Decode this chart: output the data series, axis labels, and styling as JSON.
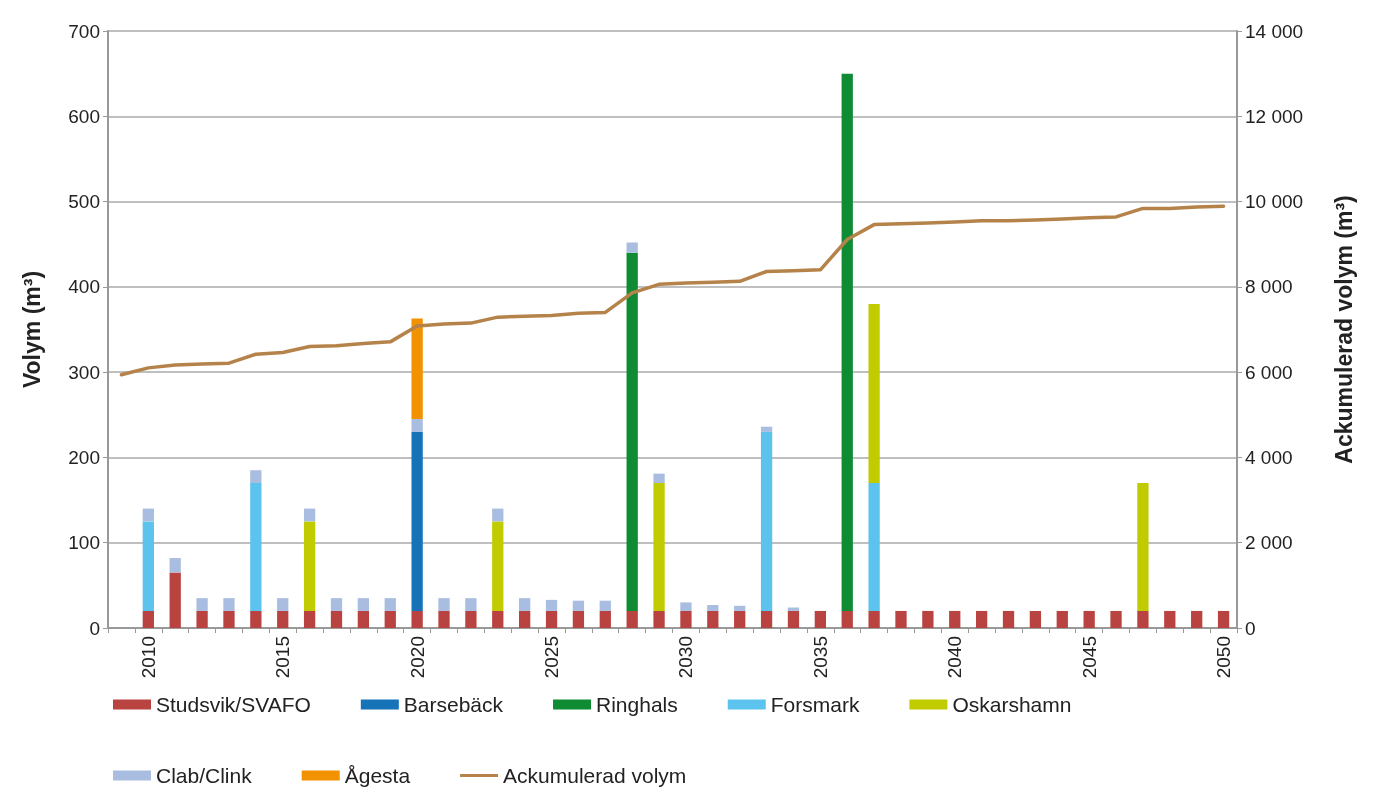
{
  "chart_data": {
    "type": "bar",
    "stacked": true,
    "ylabel": "Volym (m³)",
    "y2label": "Ackumulerad volym (m³)",
    "categories": [
      null,
      "2010",
      null,
      null,
      null,
      null,
      "2015",
      null,
      null,
      null,
      null,
      "2020",
      null,
      null,
      null,
      null,
      "2025",
      null,
      null,
      null,
      null,
      "2030",
      null,
      null,
      null,
      null,
      "2035",
      null,
      null,
      null,
      null,
      "2040",
      null,
      null,
      null,
      null,
      "2045",
      null,
      null,
      null,
      null,
      "2050"
    ],
    "series": [
      {
        "name": "Studsvik/SVAFO",
        "color": "#b94340",
        "values": [
          null,
          20,
          65,
          20,
          20,
          20,
          20,
          20,
          20,
          20,
          20,
          20,
          20,
          20,
          20,
          20,
          20,
          20,
          20,
          20,
          20,
          20,
          20,
          20,
          20,
          20,
          20,
          20,
          20,
          20,
          20,
          20,
          20,
          20,
          20,
          20,
          20,
          20,
          20,
          20,
          20,
          20
        ]
      },
      {
        "name": "Barsebäck",
        "color": "#1673b8",
        "values": [
          null,
          null,
          null,
          null,
          null,
          null,
          null,
          null,
          null,
          null,
          null,
          210,
          null,
          null,
          null,
          null,
          null,
          null,
          null,
          null,
          null,
          null,
          null,
          null,
          null,
          null,
          null,
          null,
          null,
          null,
          null,
          null,
          null,
          null,
          null,
          null,
          null,
          null,
          null,
          null,
          null,
          null
        ]
      },
      {
        "name": "Ringhals",
        "color": "#0f8c33",
        "values": [
          null,
          null,
          null,
          null,
          null,
          null,
          null,
          null,
          null,
          null,
          null,
          null,
          null,
          null,
          null,
          null,
          null,
          null,
          null,
          420,
          null,
          null,
          null,
          null,
          null,
          null,
          null,
          630,
          null,
          null,
          null,
          null,
          null,
          null,
          null,
          null,
          null,
          null,
          null,
          null,
          null,
          null
        ]
      },
      {
        "name": "Forsmark",
        "color": "#5bc3ed",
        "values": [
          null,
          105,
          null,
          null,
          null,
          150,
          null,
          null,
          null,
          null,
          null,
          null,
          null,
          null,
          null,
          null,
          null,
          null,
          null,
          null,
          null,
          null,
          null,
          null,
          210,
          null,
          null,
          null,
          150,
          null,
          null,
          null,
          null,
          null,
          null,
          null,
          null,
          null,
          null,
          null,
          null,
          null
        ]
      },
      {
        "name": "Oskarshamn",
        "color": "#c0cc00",
        "values": [
          null,
          null,
          null,
          null,
          null,
          null,
          null,
          105,
          null,
          null,
          null,
          null,
          null,
          null,
          105,
          null,
          null,
          null,
          null,
          null,
          150,
          null,
          null,
          null,
          null,
          null,
          null,
          null,
          210,
          null,
          null,
          null,
          null,
          null,
          null,
          null,
          null,
          null,
          150,
          null,
          null,
          null
        ]
      },
      {
        "name": "Clab/Clink",
        "color": "#a9bde0",
        "values": [
          null,
          15,
          17,
          15,
          15,
          15,
          15,
          15,
          15,
          15,
          15,
          15,
          15,
          15,
          15,
          15,
          13,
          12,
          12,
          12,
          11,
          10,
          7,
          6,
          6,
          4,
          null,
          null,
          null,
          null,
          null,
          null,
          null,
          null,
          null,
          null,
          null,
          null,
          null,
          null,
          null,
          null
        ]
      },
      {
        "name": "Ågesta",
        "color": "#f29200",
        "values": [
          null,
          null,
          null,
          null,
          null,
          null,
          null,
          null,
          null,
          null,
          null,
          118,
          null,
          null,
          null,
          null,
          null,
          null,
          null,
          null,
          null,
          null,
          null,
          null,
          null,
          null,
          null,
          null,
          null,
          null,
          null,
          null,
          null,
          null,
          null,
          null,
          null,
          null,
          null,
          null,
          null,
          null
        ]
      },
      {
        "name": "Ackumulerad volym",
        "type": "line",
        "axis": "y2",
        "color": "#b5834a",
        "values": [
          5940,
          6100,
          6170,
          6190,
          6210,
          6420,
          6460,
          6600,
          6620,
          6670,
          6710,
          7080,
          7130,
          7150,
          7290,
          7310,
          7330,
          7380,
          7400,
          7860,
          8060,
          8090,
          8110,
          8130,
          8360,
          8380,
          8400,
          9110,
          9460,
          9480,
          9500,
          9520,
          9550,
          9550,
          9570,
          9590,
          9620,
          9640,
          9840,
          9840,
          9870,
          9890
        ]
      }
    ],
    "ylim": [
      0,
      700
    ],
    "yticks": [
      0,
      100,
      200,
      300,
      400,
      500,
      600,
      700
    ],
    "y2lim": [
      0,
      14000
    ],
    "y2ticks": [
      {
        "value": 0,
        "label": "0"
      },
      {
        "value": 2000,
        "label": "2 000"
      },
      {
        "value": 4000,
        "label": "4 000"
      },
      {
        "value": 6000,
        "label": "6 000"
      },
      {
        "value": 8000,
        "label": "8 000"
      },
      {
        "value": 10000,
        "label": "10 000"
      },
      {
        "value": 12000,
        "label": "12 000"
      },
      {
        "value": 14000,
        "label": "14 000"
      }
    ],
    "grid": "y",
    "legend": "bottom",
    "marker": "none",
    "line_style": "solid"
  }
}
